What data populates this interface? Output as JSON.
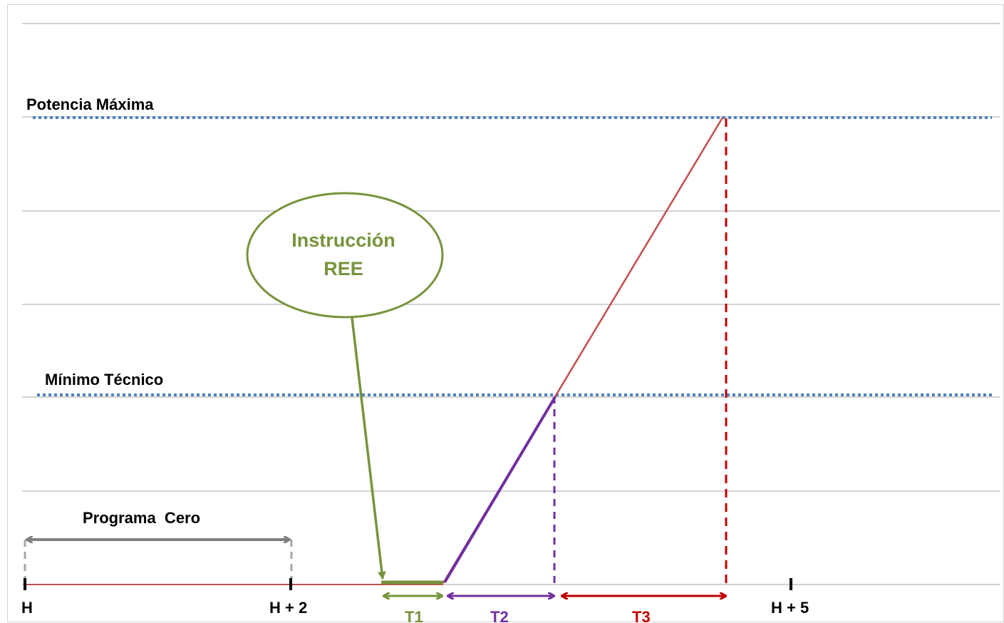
{
  "labels": {
    "potencia_maxima": "Potencia Máxima",
    "minimo_tecnico": "Mínimo Técnico",
    "programa_cero": "Programa  Cero",
    "callout_line1": "Instrucción",
    "callout_line2": "REE"
  },
  "time_ticks": [
    "H",
    "H + 2",
    "H + 5"
  ],
  "intervals": [
    {
      "label": "T1",
      "color": "#77933c"
    },
    {
      "label": "T2",
      "color": "#7030a0"
    },
    {
      "label": "T3",
      "color": "#c00000"
    }
  ],
  "colors": {
    "gridline": "#a6a6a6",
    "level_dotted": "#4f81bd",
    "power_curve": "#c0504d",
    "instruction_green": "#77933c",
    "startup_purple": "#7030a0",
    "ramp_red": "#c00000",
    "programa_arrow": "#808080",
    "dashed_gray": "#a6a6a6"
  }
}
